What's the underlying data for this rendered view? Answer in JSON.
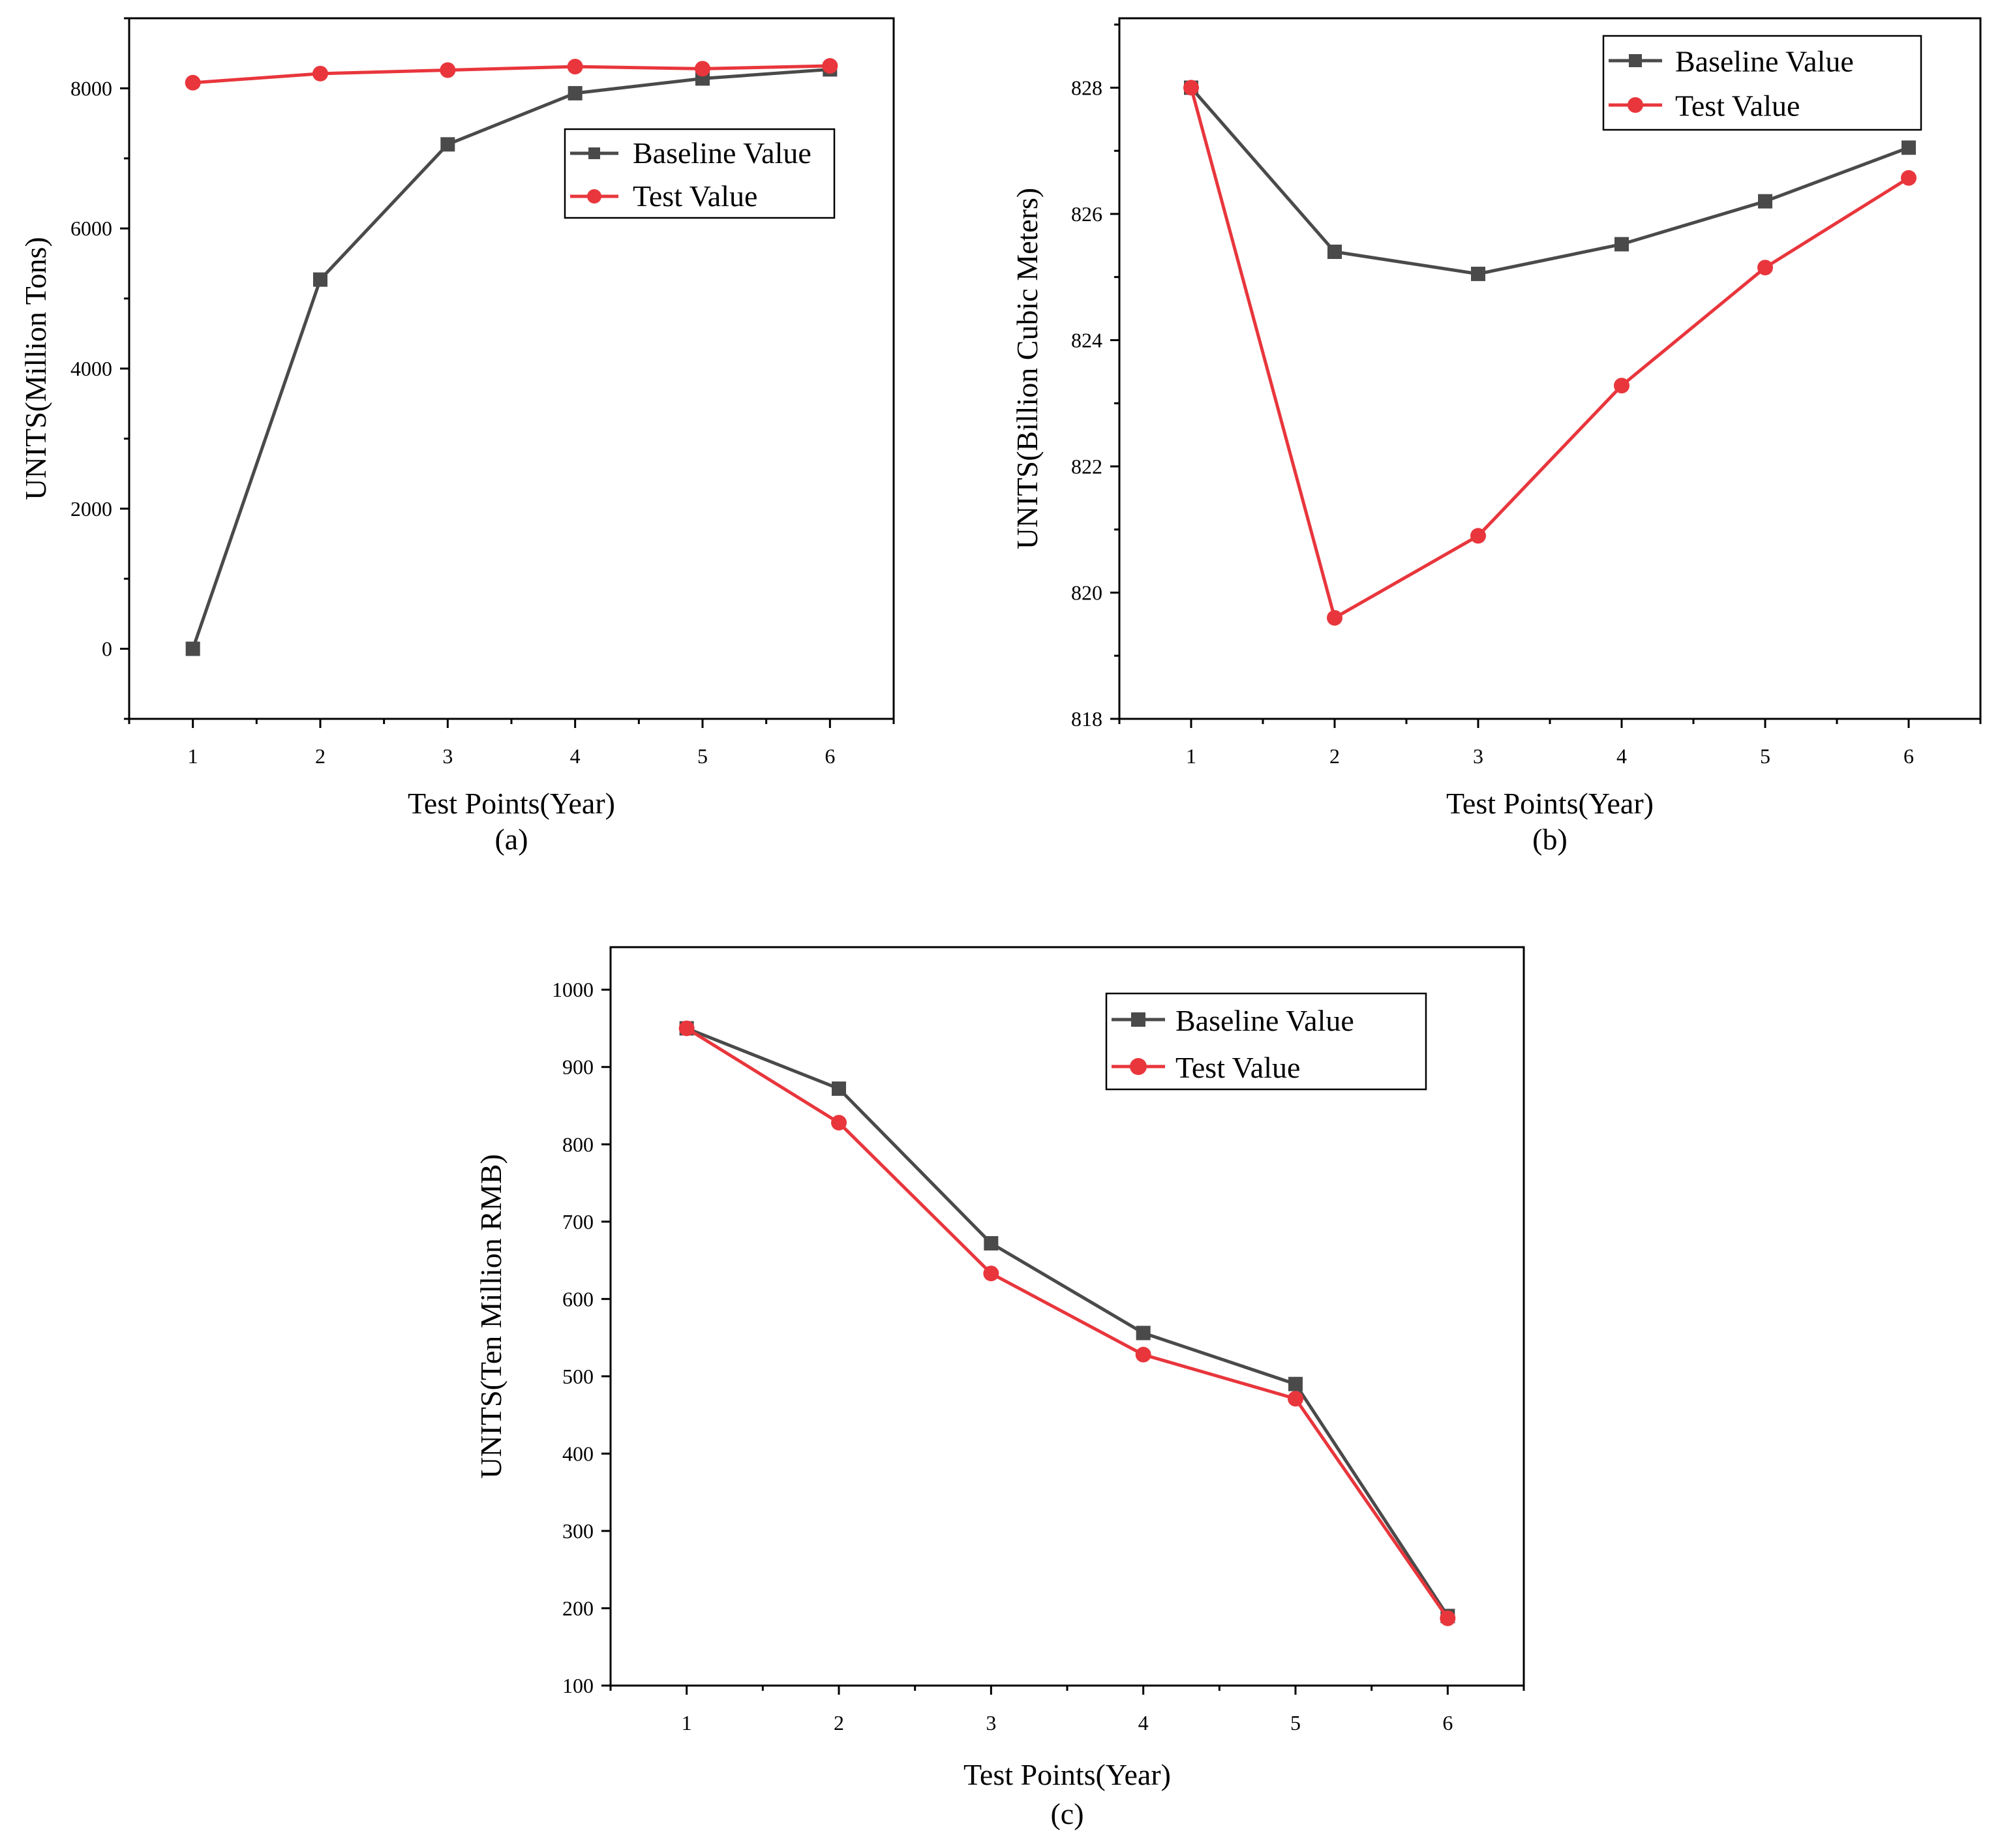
{
  "colors": {
    "baseline": "#4a4a4a",
    "test": "#e8363c",
    "axis": "#000000",
    "background": "#ffffff"
  },
  "chart_data": [
    {
      "type": "line",
      "panel_label": "(a)",
      "xlabel": "Test Points(Year)",
      "ylabel": "UNITS(Million Tons)",
      "x": [
        1,
        2,
        3,
        4,
        5,
        6
      ],
      "x_ticks": [
        "1",
        "2",
        "3",
        "4",
        "5",
        "6"
      ],
      "y_ticks": [
        0,
        2000,
        4000,
        6000,
        8000
      ],
      "xlim": [
        0.5,
        6.5
      ],
      "ylim": [
        -1000,
        9000
      ],
      "legend_position": "top-right",
      "series": [
        {
          "name": "Baseline Value",
          "marker": "square",
          "values": [
            0,
            5270,
            7200,
            7930,
            8140,
            8270
          ]
        },
        {
          "name": "Test Value",
          "marker": "circle",
          "values": [
            8080,
            8210,
            8260,
            8310,
            8280,
            8320
          ]
        }
      ]
    },
    {
      "type": "line",
      "panel_label": "(b)",
      "xlabel": "Test Points(Year)",
      "ylabel": "UNITS(Billion Cubic Meters)",
      "x": [
        1,
        2,
        3,
        4,
        5,
        6
      ],
      "x_ticks": [
        "1",
        "2",
        "3",
        "4",
        "5",
        "6"
      ],
      "y_ticks": [
        818,
        820,
        822,
        824,
        826,
        828
      ],
      "xlim": [
        0.5,
        6.5
      ],
      "ylim": [
        818,
        829.1
      ],
      "legend_position": "top-right",
      "series": [
        {
          "name": "Baseline Value",
          "marker": "square",
          "values": [
            828.0,
            825.4,
            825.05,
            825.52,
            826.2,
            827.05
          ]
        },
        {
          "name": "Test Value",
          "marker": "circle",
          "values": [
            828.0,
            819.6,
            820.9,
            823.28,
            825.15,
            826.57
          ]
        }
      ]
    },
    {
      "type": "line",
      "panel_label": "(c)",
      "xlabel": "Test Points(Year)",
      "ylabel": "UNITS(Ten Million RMB)",
      "x": [
        1,
        2,
        3,
        4,
        5,
        6
      ],
      "x_ticks": [
        "1",
        "2",
        "3",
        "4",
        "5",
        "6"
      ],
      "y_ticks": [
        100,
        200,
        300,
        400,
        500,
        600,
        700,
        800,
        900,
        1000
      ],
      "xlim": [
        0.5,
        6.5
      ],
      "ylim": [
        100,
        1055
      ],
      "legend_position": "top-right",
      "series": [
        {
          "name": "Baseline Value",
          "marker": "square",
          "values": [
            950,
            872,
            672,
            556,
            490,
            190
          ]
        },
        {
          "name": "Test Value",
          "marker": "circle",
          "values": [
            950,
            828,
            633,
            528,
            471,
            187
          ]
        }
      ]
    }
  ]
}
